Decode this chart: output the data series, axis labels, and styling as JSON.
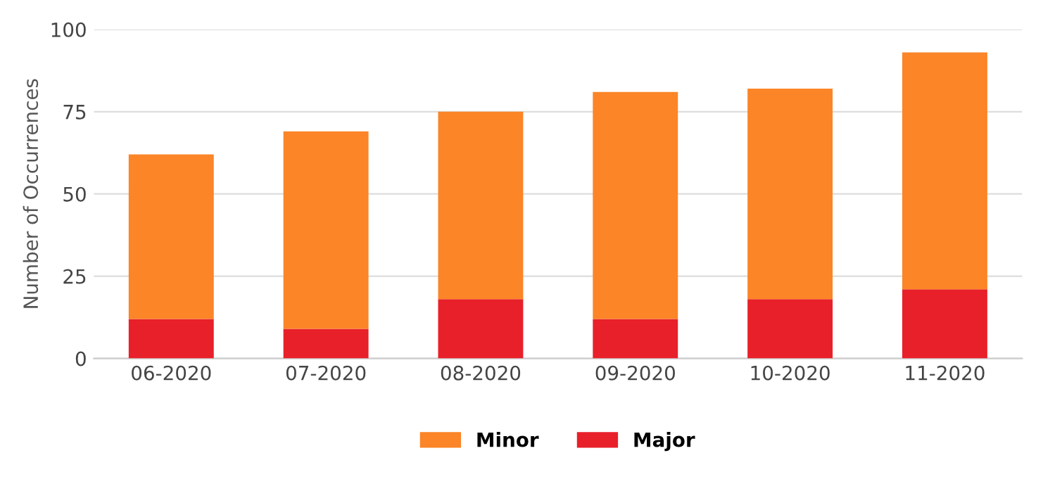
{
  "chart_data": {
    "type": "bar",
    "stacked": true,
    "ylabel": "Number of Occurrences",
    "categories": [
      "06-2020",
      "07-2020",
      "08-2020",
      "09-2020",
      "10-2020",
      "11-2020"
    ],
    "series": [
      {
        "name": "Major",
        "color": "#e8202a",
        "values": [
          12,
          9,
          18,
          12,
          18,
          21
        ]
      },
      {
        "name": "Minor",
        "color": "#fb8527",
        "values": [
          50,
          60,
          57,
          69,
          64,
          72
        ]
      }
    ],
    "ylim": [
      0,
      100
    ],
    "yticks": [
      0,
      25,
      50,
      75,
      100
    ],
    "grid": "y",
    "legend": "bottom"
  }
}
